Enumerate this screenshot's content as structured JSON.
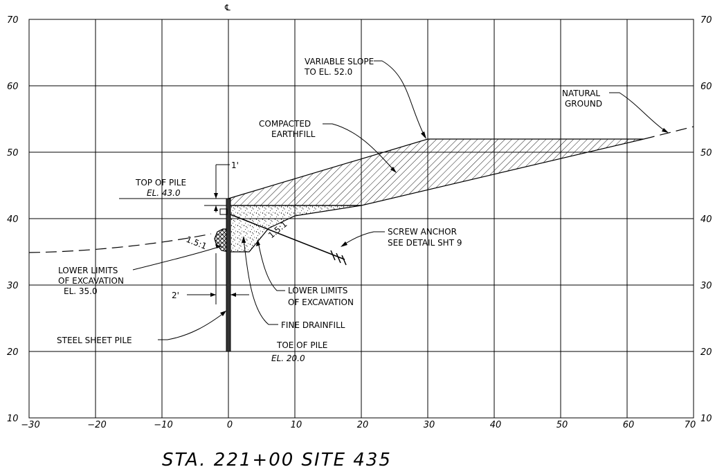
{
  "centerline_mark": "℄",
  "title": "STA. 221+00  SITE 435",
  "x_ticks": [
    "−30",
    "−20",
    "−10",
    "0",
    "10",
    "20",
    "30",
    "40",
    "50",
    "60",
    "70"
  ],
  "y_ticks": [
    "70",
    "60",
    "50",
    "40",
    "30",
    "20",
    "10"
  ],
  "labels": {
    "variable_slope_1": "VARIABLE SLOPE",
    "variable_slope_2": "TO EL. 52.0",
    "natural_ground_1": "NATURAL",
    "natural_ground_2": "GROUND",
    "compacted_1": "COMPACTED",
    "compacted_2": "EARTHFILL",
    "top_of_pile": "TOP OF PILE",
    "top_el": "EL. 43.0",
    "one_ft": "1'",
    "screw_anchor_1": "SCREW ANCHOR",
    "screw_anchor_2": "SEE DETAIL SHT 9",
    "slope_left": "1.5:1",
    "slope_right": "1.5:1",
    "lower_limits_left_1": "LOWER LIMITS",
    "lower_limits_left_2": "OF EXCAVATION",
    "lower_limits_left_3": "EL. 35.0",
    "lower_limits_right_1": "LOWER LIMITS",
    "lower_limits_right_2": "OF EXCAVATION",
    "two_ft": "2'",
    "fine_drainfill": "FINE DRAINFILL",
    "steel_sheet_pile": "STEEL SHEET PILE",
    "toe_of_pile": "TOE OF PILE",
    "toe_el": "EL. 20.0"
  }
}
